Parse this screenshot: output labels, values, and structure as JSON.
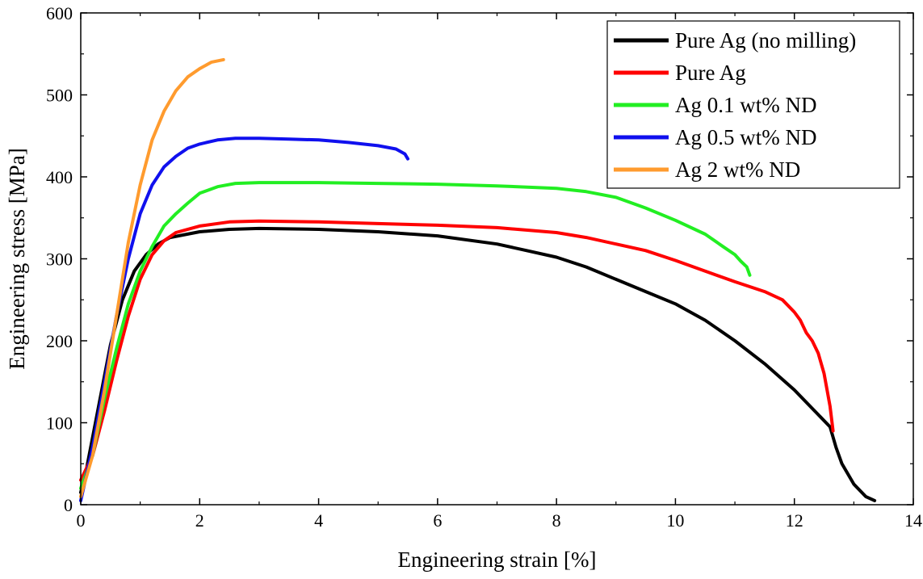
{
  "chart_data": {
    "type": "line",
    "title": "",
    "xlabel": "Engineering strain [%]",
    "ylabel": "Engineering stress [MPa]",
    "xlim": [
      0,
      14
    ],
    "ylim": [
      0,
      600
    ],
    "xticks": [
      0,
      2,
      4,
      6,
      8,
      10,
      12,
      14
    ],
    "yticks": [
      0,
      100,
      200,
      300,
      400,
      500,
      600
    ],
    "grid": false,
    "legend_position": "top-right",
    "series": [
      {
        "name": "Pure Ag (no milling)",
        "color": "#000000",
        "points": [
          [
            0,
            15
          ],
          [
            0.1,
            45
          ],
          [
            0.3,
            120
          ],
          [
            0.5,
            195
          ],
          [
            0.7,
            250
          ],
          [
            0.9,
            285
          ],
          [
            1.1,
            305
          ],
          [
            1.3,
            318
          ],
          [
            1.5,
            326
          ],
          [
            2.0,
            333
          ],
          [
            2.5,
            336
          ],
          [
            3.0,
            337
          ],
          [
            4.0,
            336
          ],
          [
            5.0,
            333
          ],
          [
            6.0,
            328
          ],
          [
            7.0,
            318
          ],
          [
            7.5,
            310
          ],
          [
            8.0,
            302
          ],
          [
            8.5,
            290
          ],
          [
            9.0,
            275
          ],
          [
            9.5,
            260
          ],
          [
            10.0,
            245
          ],
          [
            10.5,
            225
          ],
          [
            11.0,
            200
          ],
          [
            11.5,
            172
          ],
          [
            12.0,
            140
          ],
          [
            12.4,
            110
          ],
          [
            12.6,
            95
          ],
          [
            12.7,
            70
          ],
          [
            12.8,
            50
          ],
          [
            13.0,
            25
          ],
          [
            13.2,
            10
          ],
          [
            13.35,
            5
          ]
        ]
      },
      {
        "name": "Pure Ag",
        "color": "#ff0000",
        "points": [
          [
            0,
            30
          ],
          [
            0.2,
            60
          ],
          [
            0.4,
            115
          ],
          [
            0.6,
            175
          ],
          [
            0.8,
            230
          ],
          [
            1.0,
            275
          ],
          [
            1.2,
            305
          ],
          [
            1.4,
            322
          ],
          [
            1.6,
            332
          ],
          [
            2.0,
            340
          ],
          [
            2.5,
            345
          ],
          [
            3.0,
            346
          ],
          [
            4.0,
            345
          ],
          [
            5.0,
            343
          ],
          [
            6.0,
            341
          ],
          [
            7.0,
            338
          ],
          [
            8.0,
            332
          ],
          [
            8.5,
            326
          ],
          [
            9.0,
            318
          ],
          [
            9.5,
            310
          ],
          [
            10.0,
            298
          ],
          [
            10.5,
            285
          ],
          [
            11.0,
            272
          ],
          [
            11.5,
            260
          ],
          [
            11.8,
            250
          ],
          [
            12.0,
            235
          ],
          [
            12.1,
            225
          ],
          [
            12.2,
            210
          ],
          [
            12.3,
            200
          ],
          [
            12.4,
            185
          ],
          [
            12.5,
            160
          ],
          [
            12.55,
            140
          ],
          [
            12.6,
            120
          ],
          [
            12.65,
            90
          ]
        ]
      },
      {
        "name": "Ag 0.1 wt% ND",
        "color": "#22ee22",
        "points": [
          [
            0,
            20
          ],
          [
            0.2,
            60
          ],
          [
            0.4,
            130
          ],
          [
            0.6,
            190
          ],
          [
            0.8,
            245
          ],
          [
            1.0,
            285
          ],
          [
            1.2,
            315
          ],
          [
            1.4,
            340
          ],
          [
            1.6,
            355
          ],
          [
            1.8,
            368
          ],
          [
            2.0,
            380
          ],
          [
            2.3,
            388
          ],
          [
            2.6,
            392
          ],
          [
            3.0,
            393
          ],
          [
            4.0,
            393
          ],
          [
            5.0,
            392
          ],
          [
            6.0,
            391
          ],
          [
            7.0,
            389
          ],
          [
            8.0,
            386
          ],
          [
            8.5,
            382
          ],
          [
            9.0,
            375
          ],
          [
            9.5,
            362
          ],
          [
            10.0,
            347
          ],
          [
            10.5,
            330
          ],
          [
            10.8,
            315
          ],
          [
            11.0,
            305
          ],
          [
            11.1,
            297
          ],
          [
            11.2,
            290
          ],
          [
            11.25,
            280
          ]
        ]
      },
      {
        "name": "Ag 0.5 wt% ND",
        "color": "#1010ee",
        "points": [
          [
            0,
            5
          ],
          [
            0.2,
            70
          ],
          [
            0.4,
            150
          ],
          [
            0.6,
            230
          ],
          [
            0.8,
            300
          ],
          [
            1.0,
            355
          ],
          [
            1.2,
            390
          ],
          [
            1.4,
            412
          ],
          [
            1.6,
            425
          ],
          [
            1.8,
            435
          ],
          [
            2.0,
            440
          ],
          [
            2.3,
            445
          ],
          [
            2.6,
            447
          ],
          [
            3.0,
            447
          ],
          [
            3.5,
            446
          ],
          [
            4.0,
            445
          ],
          [
            4.5,
            442
          ],
          [
            5.0,
            438
          ],
          [
            5.3,
            434
          ],
          [
            5.45,
            428
          ],
          [
            5.5,
            422
          ]
        ]
      },
      {
        "name": "Ag 2 wt% ND",
        "color": "#ff9b2e",
        "points": [
          [
            0,
            10
          ],
          [
            0.2,
            60
          ],
          [
            0.4,
            140
          ],
          [
            0.6,
            230
          ],
          [
            0.8,
            320
          ],
          [
            1.0,
            390
          ],
          [
            1.2,
            445
          ],
          [
            1.4,
            480
          ],
          [
            1.6,
            505
          ],
          [
            1.8,
            522
          ],
          [
            2.0,
            532
          ],
          [
            2.2,
            540
          ],
          [
            2.4,
            543
          ]
        ]
      }
    ]
  }
}
